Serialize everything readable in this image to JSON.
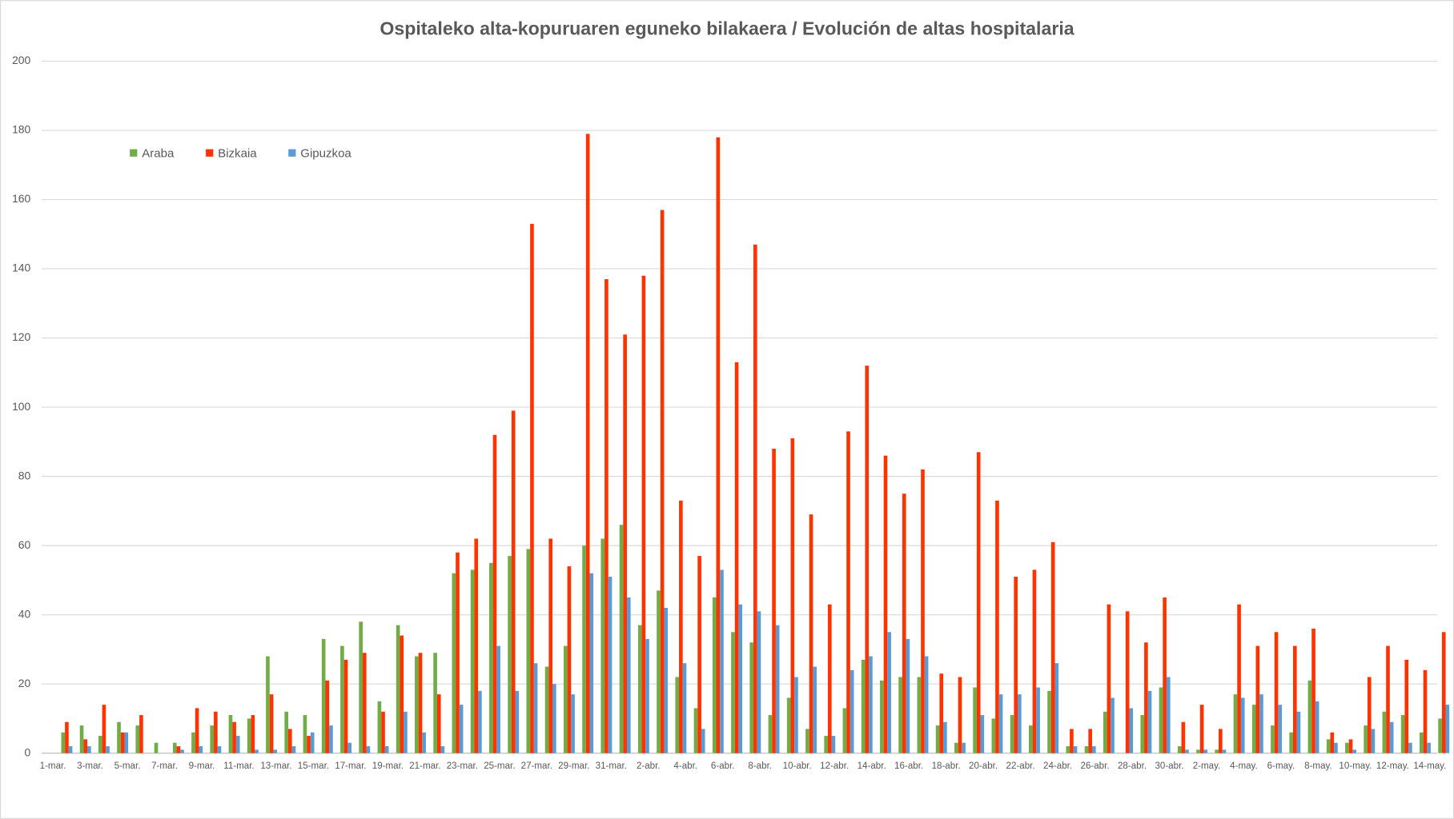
{
  "chart_data": {
    "type": "bar",
    "title": "Ospitaleko alta-kopuruaren eguneko bilakaera / Evolución de altas hospitalaria",
    "categories": [
      "1-mar.",
      null,
      "3-mar.",
      null,
      "5-mar.",
      null,
      "7-mar.",
      null,
      "9-mar.",
      null,
      "11-mar.",
      null,
      "13-mar.",
      null,
      "15-mar.",
      null,
      "17-mar.",
      null,
      "19-mar.",
      null,
      "21-mar.",
      null,
      "23-mar.",
      null,
      "25-mar.",
      null,
      "27-mar.",
      null,
      "29-mar.",
      null,
      "31-mar.",
      null,
      "2-abr.",
      null,
      "4-abr.",
      null,
      "6-abr.",
      null,
      "8-abr.",
      null,
      "10-abr.",
      null,
      "12-abr.",
      null,
      "14-abr.",
      null,
      "16-abr.",
      null,
      "18-abr.",
      null,
      "20-abr.",
      null,
      "22-abr.",
      null,
      "24-abr.",
      null,
      "26-abr.",
      null,
      "28-abr.",
      null,
      "30-abr.",
      null,
      "2-may.",
      null,
      "4-may.",
      null,
      "6-may.",
      null,
      "8-may.",
      null,
      "10-may.",
      null,
      "12-may.",
      null,
      "14-may."
    ],
    "series": [
      {
        "name": "Araba",
        "color": "#70ad47",
        "values": [
          6,
          8,
          5,
          9,
          8,
          3,
          3,
          6,
          8,
          11,
          10,
          28,
          12,
          11,
          33,
          31,
          38,
          15,
          37,
          28,
          29,
          52,
          53,
          55,
          57,
          59,
          25,
          31,
          60,
          62,
          66,
          37,
          47,
          22,
          13,
          45,
          35,
          32,
          11,
          16,
          7,
          5,
          13,
          27,
          21,
          22,
          22,
          8,
          3,
          19,
          10,
          11,
          8,
          18,
          2,
          2,
          12,
          0,
          11,
          19,
          2,
          1,
          1,
          17,
          14,
          8,
          6,
          21,
          4,
          3,
          8,
          12,
          11,
          6,
          10
        ]
      },
      {
        "name": "Bizkaia",
        "color": "#ff3300",
        "values": [
          9,
          4,
          14,
          6,
          11,
          0,
          2,
          13,
          12,
          9,
          11,
          17,
          7,
          5,
          21,
          27,
          29,
          12,
          34,
          29,
          17,
          58,
          62,
          92,
          99,
          153,
          62,
          54,
          179,
          137,
          121,
          138,
          157,
          73,
          57,
          178,
          113,
          147,
          88,
          91,
          69,
          43,
          93,
          112,
          86,
          75,
          82,
          23,
          22,
          87,
          73,
          51,
          53,
          61,
          7,
          7,
          43,
          41,
          32,
          45,
          9,
          14,
          7,
          43,
          31,
          35,
          31,
          36,
          6,
          4,
          22,
          31,
          27,
          24,
          35
        ]
      },
      {
        "name": "Gipuzkoa",
        "color": "#5b9bd5",
        "values": [
          2,
          2,
          2,
          6,
          0,
          0,
          1,
          2,
          2,
          5,
          1,
          1,
          2,
          6,
          8,
          3,
          2,
          2,
          12,
          6,
          2,
          14,
          18,
          31,
          18,
          26,
          20,
          17,
          52,
          51,
          45,
          33,
          42,
          26,
          7,
          53,
          43,
          41,
          37,
          22,
          25,
          5,
          24,
          28,
          35,
          33,
          28,
          9,
          3,
          11,
          17,
          17,
          19,
          26,
          2,
          2,
          16,
          13,
          18,
          22,
          1,
          1,
          1,
          16,
          17,
          14,
          12,
          15,
          3,
          1,
          7,
          9,
          3,
          3,
          14
        ]
      }
    ],
    "ylim": [
      0,
      200
    ],
    "yticks": [
      0,
      20,
      40,
      60,
      80,
      100,
      120,
      140,
      160,
      180,
      200
    ],
    "grid": true,
    "legend": "top-left"
  }
}
